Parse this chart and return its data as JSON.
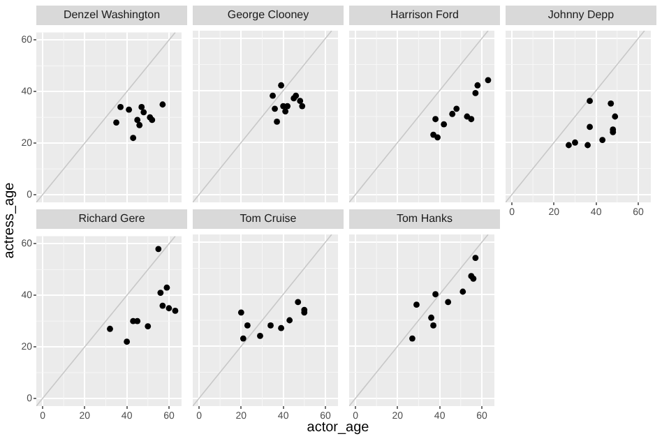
{
  "chart_data": [
    {
      "type": "scatter",
      "title": "Denzel Washington",
      "ylabel": "actress_age",
      "xlim": [
        -3,
        66
      ],
      "ylim": [
        -3,
        63
      ],
      "xticks": [
        0,
        20,
        40,
        60
      ],
      "yticks": [
        0,
        20,
        40,
        60
      ],
      "grid": true,
      "tick_labels": "y",
      "series": [
        {
          "marker": "circle",
          "color": "#000000",
          "x": [
            35,
            37,
            41,
            43,
            45,
            46,
            47,
            48,
            51,
            52,
            57
          ],
          "values": [
            28,
            34,
            33,
            22,
            29,
            27,
            34,
            32,
            30,
            29,
            35
          ]
        },
        {
          "type": "line",
          "marker": "none",
          "color": "#c8c8c8",
          "x": [
            -3,
            63
          ],
          "values": [
            -3,
            63
          ]
        }
      ]
    },
    {
      "type": "scatter",
      "title": "George Clooney",
      "xlim": [
        -3,
        66
      ],
      "ylim": [
        -3,
        63
      ],
      "xticks": [
        0,
        20,
        40,
        60
      ],
      "yticks": [
        0,
        20,
        40,
        60
      ],
      "grid": true,
      "tick_labels": false,
      "series": [
        {
          "marker": "circle",
          "color": "#000000",
          "x": [
            35,
            36,
            37,
            39,
            40,
            41,
            42,
            45,
            46,
            48,
            49
          ],
          "values": [
            38,
            33,
            28,
            42,
            34,
            32,
            34,
            37,
            38,
            36,
            34
          ]
        },
        {
          "type": "line",
          "marker": "none",
          "color": "#c8c8c8",
          "x": [
            -3,
            63
          ],
          "values": [
            -3,
            63
          ]
        }
      ]
    },
    {
      "type": "scatter",
      "title": "Harrison Ford",
      "xlim": [
        -3,
        66
      ],
      "ylim": [
        -3,
        63
      ],
      "xticks": [
        0,
        20,
        40,
        60
      ],
      "yticks": [
        0,
        20,
        40,
        60
      ],
      "grid": true,
      "tick_labels": false,
      "series": [
        {
          "marker": "circle",
          "color": "#000000",
          "x": [
            38,
            37,
            39,
            42,
            46,
            48,
            53,
            55,
            57,
            58,
            63
          ],
          "values": [
            29,
            23,
            22,
            27,
            31,
            33,
            30,
            29,
            39,
            42,
            44
          ]
        },
        {
          "type": "line",
          "marker": "none",
          "color": "#c8c8c8",
          "x": [
            -3,
            63
          ],
          "values": [
            -3,
            63
          ]
        }
      ]
    },
    {
      "type": "scatter",
      "title": "Johnny Depp",
      "xlim": [
        -3,
        66
      ],
      "ylim": [
        -3,
        63
      ],
      "xticks": [
        0,
        20,
        40,
        60
      ],
      "yticks": [
        0,
        20,
        40,
        60
      ],
      "grid": true,
      "tick_labels": "x",
      "series": [
        {
          "marker": "circle",
          "color": "#000000",
          "x": [
            27,
            30,
            36,
            37,
            37,
            43,
            47,
            49,
            48,
            48
          ],
          "values": [
            19,
            20,
            19,
            36,
            26,
            21,
            35,
            30,
            25,
            24
          ]
        },
        {
          "type": "line",
          "marker": "none",
          "color": "#c8c8c8",
          "x": [
            -3,
            63
          ],
          "values": [
            -3,
            63
          ]
        }
      ]
    },
    {
      "type": "scatter",
      "title": "Richard Gere",
      "xlim": [
        -3,
        66
      ],
      "ylim": [
        -3,
        63
      ],
      "xticks": [
        0,
        20,
        40,
        60
      ],
      "yticks": [
        0,
        20,
        40,
        60
      ],
      "grid": true,
      "series": [
        {
          "marker": "circle",
          "color": "#000000",
          "x": [
            32,
            40,
            43,
            45,
            50,
            55,
            56,
            57,
            59,
            60,
            63
          ],
          "values": [
            27,
            22,
            30,
            30,
            28,
            58,
            41,
            36,
            43,
            35,
            34
          ]
        },
        {
          "type": "line",
          "marker": "none",
          "color": "#c8c8c8",
          "x": [
            -3,
            63
          ],
          "values": [
            -3,
            63
          ]
        }
      ]
    },
    {
      "type": "scatter",
      "title": "Tom Cruise",
      "xlabel": "actor_age",
      "xlim": [
        -3,
        66
      ],
      "ylim": [
        -3,
        63
      ],
      "xticks": [
        0,
        20,
        40,
        60
      ],
      "yticks": [
        0,
        20,
        40,
        60
      ],
      "grid": true,
      "tick_labels": "x",
      "series": [
        {
          "marker": "circle",
          "color": "#000000",
          "x": [
            20,
            21,
            23,
            29,
            34,
            39,
            43,
            47,
            50,
            50
          ],
          "values": [
            33,
            23,
            28,
            24,
            28,
            27,
            30,
            37,
            34,
            33
          ]
        },
        {
          "type": "line",
          "marker": "none",
          "color": "#c8c8c8",
          "x": [
            -3,
            63
          ],
          "values": [
            -3,
            63
          ]
        }
      ]
    },
    {
      "type": "scatter",
      "title": "Tom Hanks",
      "xlim": [
        -3,
        66
      ],
      "ylim": [
        -3,
        63
      ],
      "xticks": [
        0,
        20,
        40,
        60
      ],
      "yticks": [
        0,
        20,
        40,
        60
      ],
      "grid": true,
      "tick_labels": "x",
      "series": [
        {
          "marker": "circle",
          "color": "#000000",
          "x": [
            27,
            29,
            36,
            37,
            38,
            44,
            51,
            55,
            56,
            57
          ],
          "values": [
            23,
            36,
            31,
            28,
            40,
            37,
            41,
            47,
            46,
            54
          ]
        },
        {
          "type": "line",
          "marker": "none",
          "color": "#c8c8c8",
          "x": [
            -3,
            63
          ],
          "values": [
            -3,
            63
          ]
        }
      ]
    }
  ]
}
